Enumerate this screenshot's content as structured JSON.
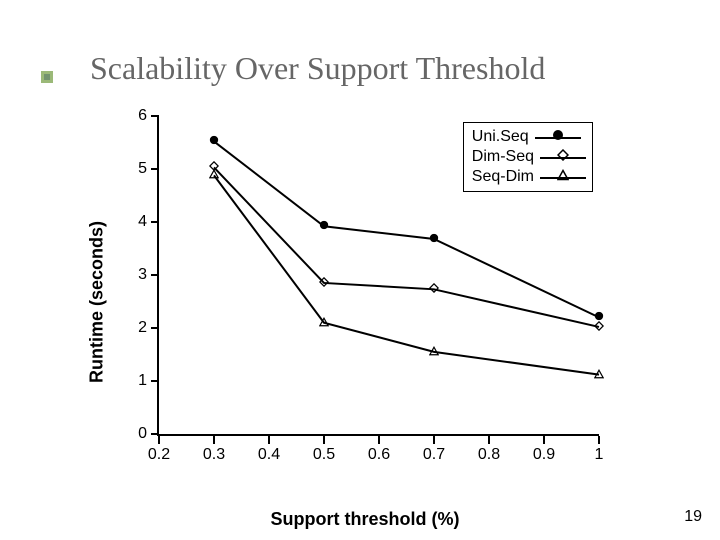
{
  "page_number": "19",
  "title": "Scalability Over Support Threshold",
  "bullet_colors": {
    "outer": "#9bb978",
    "inner": "#73936f"
  },
  "chart": {
    "type": "line",
    "xlabel": "Support threshold (%)",
    "ylabel": "Runtime (seconds)",
    "xlim": [
      0.2,
      1.0
    ],
    "ylim": [
      0,
      6
    ],
    "xticks": [
      0.2,
      0.3,
      0.4,
      0.5,
      0.6,
      0.7,
      0.8,
      0.9,
      1
    ],
    "xtick_labels": [
      "0.2",
      "0.3",
      "0.4",
      "0.5",
      "0.6",
      "0.7",
      "0.8",
      "0.9",
      "1"
    ],
    "yticks": [
      0,
      1,
      2,
      3,
      4,
      5,
      6
    ],
    "ytick_labels": [
      "0",
      "1",
      "2",
      "3",
      "4",
      "5",
      "6"
    ],
    "line_color": "#000000",
    "line_width": 2,
    "tick_length": 8,
    "background_color": "#ffffff",
    "axis_color": "#000000",
    "marker_size": 10,
    "series": [
      {
        "name": "Uni.Seq",
        "marker": "filled-circle",
        "x": [
          0.3,
          0.5,
          0.7,
          1.0
        ],
        "y": [
          5.52,
          3.92,
          3.68,
          2.2
        ]
      },
      {
        "name": "Dim-Seq",
        "marker": "open-diamond",
        "x": [
          0.3,
          0.5,
          0.7,
          1.0
        ],
        "y": [
          5.03,
          2.85,
          2.73,
          2.02
        ]
      },
      {
        "name": "Seq-Dim",
        "marker": "open-triangle",
        "x": [
          0.3,
          0.5,
          0.7,
          1.0
        ],
        "y": [
          4.88,
          2.1,
          1.55,
          1.12
        ]
      }
    ],
    "legend": {
      "position": "top-right",
      "border_color": "#000000"
    }
  }
}
